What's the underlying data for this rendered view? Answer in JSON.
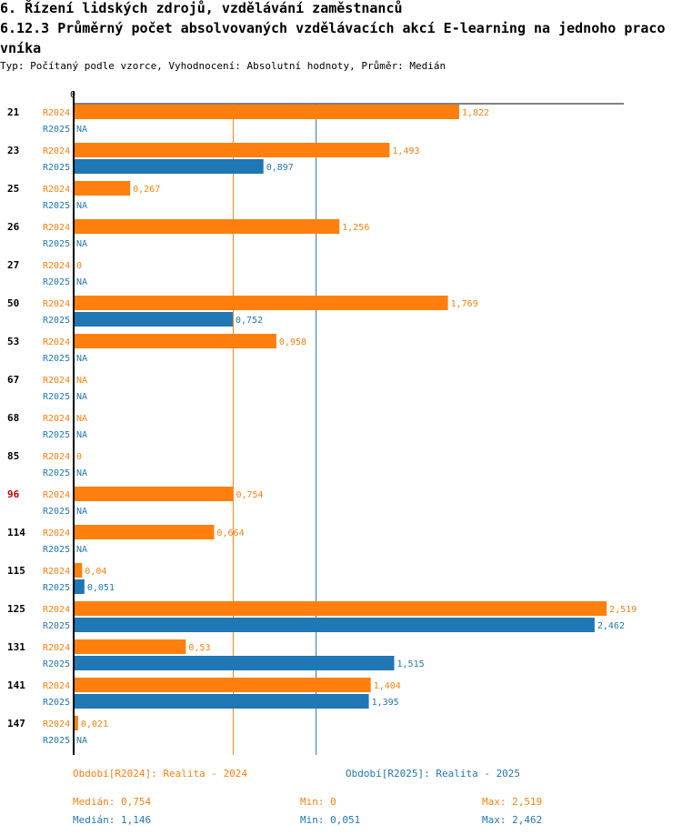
{
  "header": {
    "title": "6. Řízení lidských zdrojů, vzdělávání zaměstnanců",
    "subtitle": "6.12.3 Průměrný počet absolvovaných vzdělávacích akcí E-learning na jednoho pracovníka",
    "meta": "Typ: Počítaný podle vzorce, Vyhodnocení: Absolutní hodnoty, Průměr: Medián"
  },
  "colors": {
    "r2024": "#ff7f0e",
    "r2025": "#1f77b4",
    "highlight": "#cc0000",
    "axis": "#000000"
  },
  "chart_data": {
    "type": "bar",
    "orientation": "horizontal",
    "xlim": [
      0,
      2.6
    ],
    "x_tick_label": "0",
    "na_label": "NA",
    "highlight_category": "96",
    "categories": [
      "21",
      "23",
      "25",
      "26",
      "27",
      "50",
      "53",
      "67",
      "68",
      "85",
      "96",
      "114",
      "115",
      "125",
      "131",
      "141",
      "147"
    ],
    "series": [
      {
        "name": "R2024",
        "values": [
          1.822,
          1.493,
          0.267,
          1.256,
          0,
          1.769,
          0.958,
          null,
          null,
          0,
          0.754,
          0.664,
          0.04,
          2.519,
          0.53,
          1.404,
          0.021
        ],
        "labels": [
          "1,822",
          "1,493",
          "0,267",
          "1,256",
          "0",
          "1,769",
          "0,958",
          "NA",
          "NA",
          "0",
          "0,754",
          "0,664",
          "0,04",
          "2,519",
          "0,53",
          "1,404",
          "0,021"
        ]
      },
      {
        "name": "R2025",
        "values": [
          null,
          0.897,
          null,
          null,
          null,
          0.752,
          null,
          null,
          null,
          null,
          null,
          null,
          0.051,
          2.462,
          1.515,
          1.395,
          null
        ],
        "labels": [
          "NA",
          "0,897",
          "NA",
          "NA",
          "NA",
          "0,752",
          "NA",
          "NA",
          "NA",
          "NA",
          "NA",
          "NA",
          "0,051",
          "2,462",
          "1,515",
          "1,395",
          "NA"
        ]
      }
    ],
    "median_lines": [
      {
        "series": "R2024",
        "value": 0.754
      },
      {
        "series": "R2025",
        "value": 1.146
      }
    ]
  },
  "legend": {
    "r2024_label": "Období[R2024]: Realita - 2024",
    "r2025_label": "Období[R2025]: Realita - 2025",
    "r2024_median": "Medián: 0,754",
    "r2024_min": "Min: 0",
    "r2024_max": "Max: 2,519",
    "r2025_median": "Medián: 1,146",
    "r2025_min": "Min: 0,051",
    "r2025_max": "Max: 2,462"
  }
}
